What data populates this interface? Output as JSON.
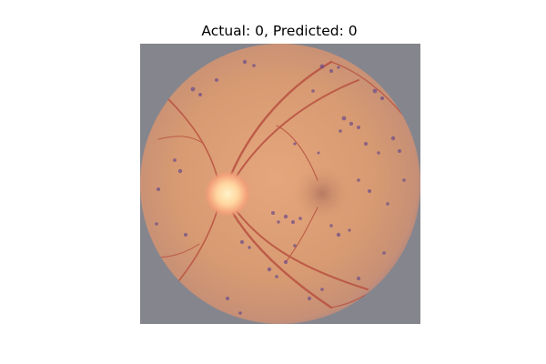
{
  "figure": {
    "title": "Actual: 0, Predicted: 0"
  },
  "image": {
    "subject": "retinal-fundus-photograph",
    "background_color": "#85858d",
    "fundus_color": "#d89a72",
    "vessel_color": "#b84a3a",
    "lesion_color": "#6a4a8a",
    "optic_disc_color": "#ffe6b0"
  }
}
